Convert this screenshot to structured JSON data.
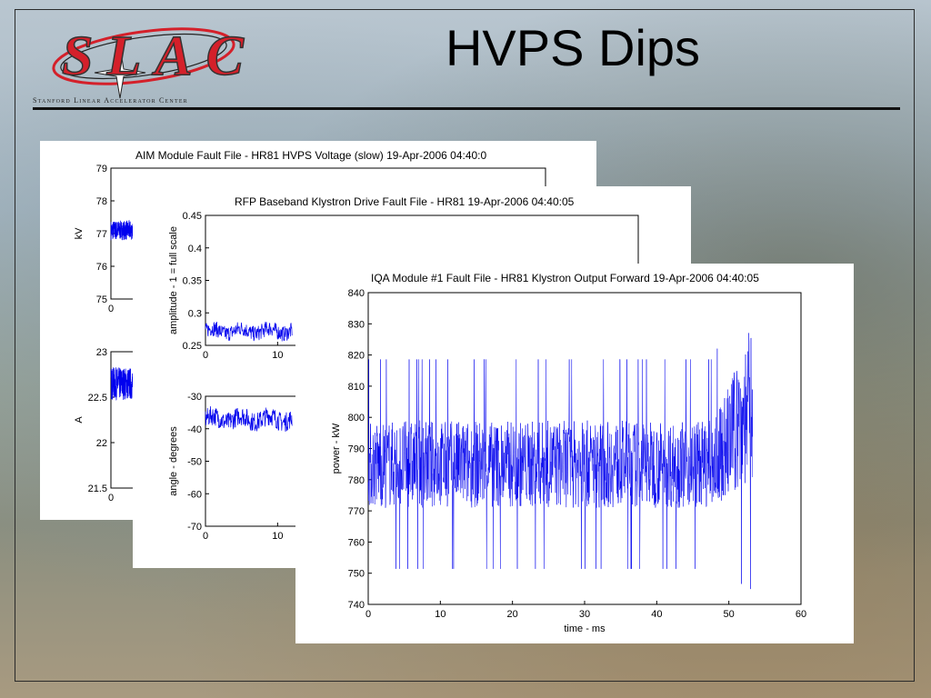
{
  "slide": {
    "title": "HVPS Dips",
    "logo_text": "SLAC",
    "logo_subtitle": "Stanford Linear Accelerator Center",
    "colors": {
      "trace": "#0000ee",
      "logo_red": "#d4202a"
    }
  },
  "chart_data": [
    {
      "type": "line",
      "title": "AIM Module Fault File - HR81 HVPS Voltage (slow) 19-Apr-2006 04:40:0",
      "subplots": [
        {
          "ylabel": "kV",
          "ylim": [
            75,
            79
          ],
          "yticks": [
            "79",
            "78",
            "77",
            "76",
            "75"
          ],
          "xticks": [
            "0"
          ],
          "series": [
            {
              "x_range": [
                0,
                3
              ],
              "mean": 77.1,
              "spread": 0.3
            }
          ]
        },
        {
          "ylabel": "A",
          "ylim": [
            21.5,
            23
          ],
          "yticks": [
            "23",
            "22.5",
            "22",
            "21.5"
          ],
          "xticks": [
            "0"
          ],
          "series": [
            {
              "x_range": [
                0,
                3
              ],
              "mean": 22.65,
              "spread": 0.18
            }
          ]
        }
      ]
    },
    {
      "type": "line",
      "title": "RFP Baseband Klystron Drive Fault File - HR81 19-Apr-2006 04:40:05",
      "subplots": [
        {
          "ylabel": "amplitude - 1 = full scale",
          "ylim": [
            0.25,
            0.45
          ],
          "yticks": [
            "0.45",
            "0.4",
            "0.35",
            "0.3",
            "0.25"
          ],
          "xticks": [
            "0",
            "10"
          ],
          "series": [
            {
              "x_range": [
                0,
                12
              ],
              "mean": 0.272,
              "spread": 0.012
            }
          ]
        },
        {
          "ylabel": "angle - degrees",
          "ylim": [
            -70,
            -30
          ],
          "yticks": [
            "-30",
            "-40",
            "-50",
            "-60",
            "-70"
          ],
          "xticks": [
            "0",
            "10"
          ],
          "series": [
            {
              "x_range": [
                0,
                12
              ],
              "mean": -37,
              "spread": 3
            }
          ]
        }
      ]
    },
    {
      "type": "line",
      "title": "IQA Module #1 Fault File - HR81 Klystron Output Forward 19-Apr-2006 04:40:05",
      "xlabel": "time - ms",
      "ylabel": "power - kW",
      "xlim": [
        0,
        60
      ],
      "ylim": [
        740,
        840
      ],
      "xticks": [
        "0",
        "10",
        "20",
        "30",
        "40",
        "50",
        "60"
      ],
      "yticks": [
        "840",
        "830",
        "820",
        "810",
        "800",
        "790",
        "780",
        "770",
        "760",
        "750",
        "740"
      ],
      "series": [
        {
          "x_range": [
            0,
            53.3
          ],
          "mean": 785,
          "spread": 14,
          "rise_after": 48,
          "end_mean": 805
        }
      ]
    }
  ]
}
